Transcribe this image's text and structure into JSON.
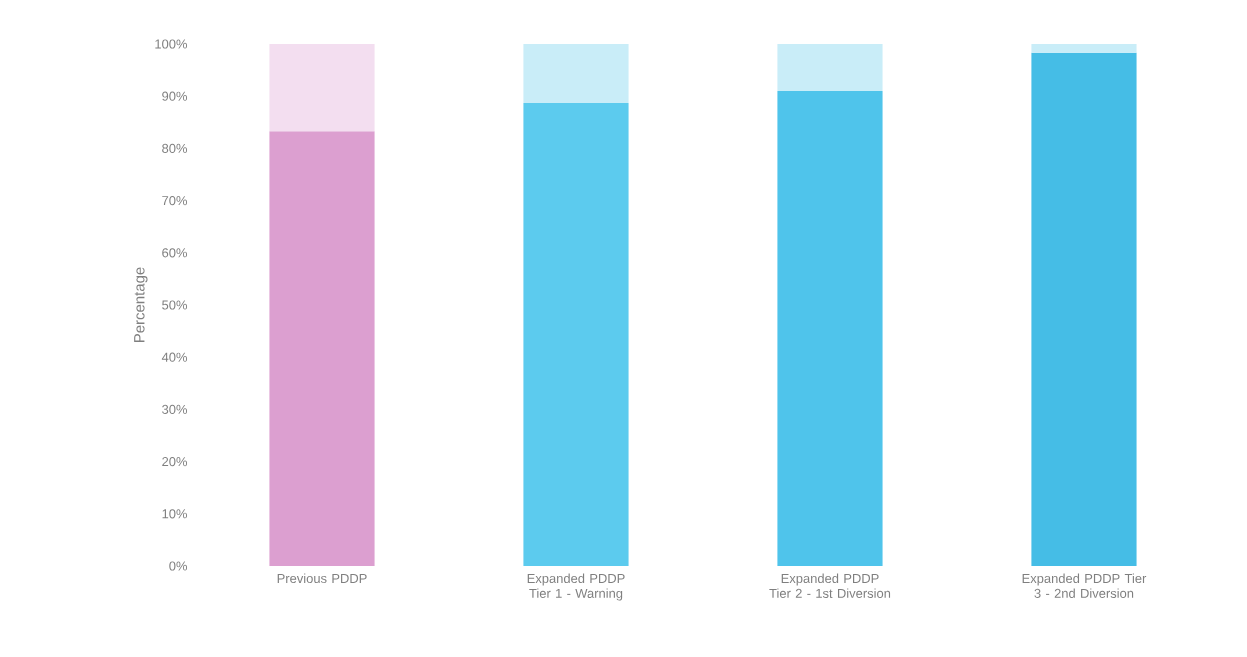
{
  "chart_data": {
    "type": "bar",
    "stacked": true,
    "ylabel": "Percentage",
    "categories": [
      "Previous PDDP",
      "Expanded PDDP Tier 1 - Warning",
      "Expanded PDDP Tier 2 - 1st Diversion",
      "Expanded PDDP Tier 3 - 2nd Diversion"
    ],
    "series": [
      {
        "colors": [
          "#dc9fd0",
          "#5ccbee",
          "#4fc4eb",
          "#45bde6"
        ],
        "values": [
          83.3,
          88.7,
          91.0,
          98.3
        ]
      },
      {
        "colors": [
          "#f3def0",
          "#c9edf8",
          "#c9edf8",
          "#c9edf8"
        ],
        "values": [
          16.7,
          11.3,
          9.0,
          1.7
        ]
      }
    ],
    "ylim": [
      0,
      100
    ],
    "yticks": [
      {
        "value": 0,
        "label": "0%"
      },
      {
        "value": 10,
        "label": "10%"
      },
      {
        "value": 20,
        "label": "20%"
      },
      {
        "value": 30,
        "label": "30%"
      },
      {
        "value": 40,
        "label": "40%"
      },
      {
        "value": 50,
        "label": "50%"
      },
      {
        "value": 60,
        "label": "60%"
      },
      {
        "value": 70,
        "label": "70%"
      },
      {
        "value": 80,
        "label": "80%"
      },
      {
        "value": 90,
        "label": "90%"
      },
      {
        "value": 100,
        "label": "100%"
      }
    ],
    "grid": false
  }
}
